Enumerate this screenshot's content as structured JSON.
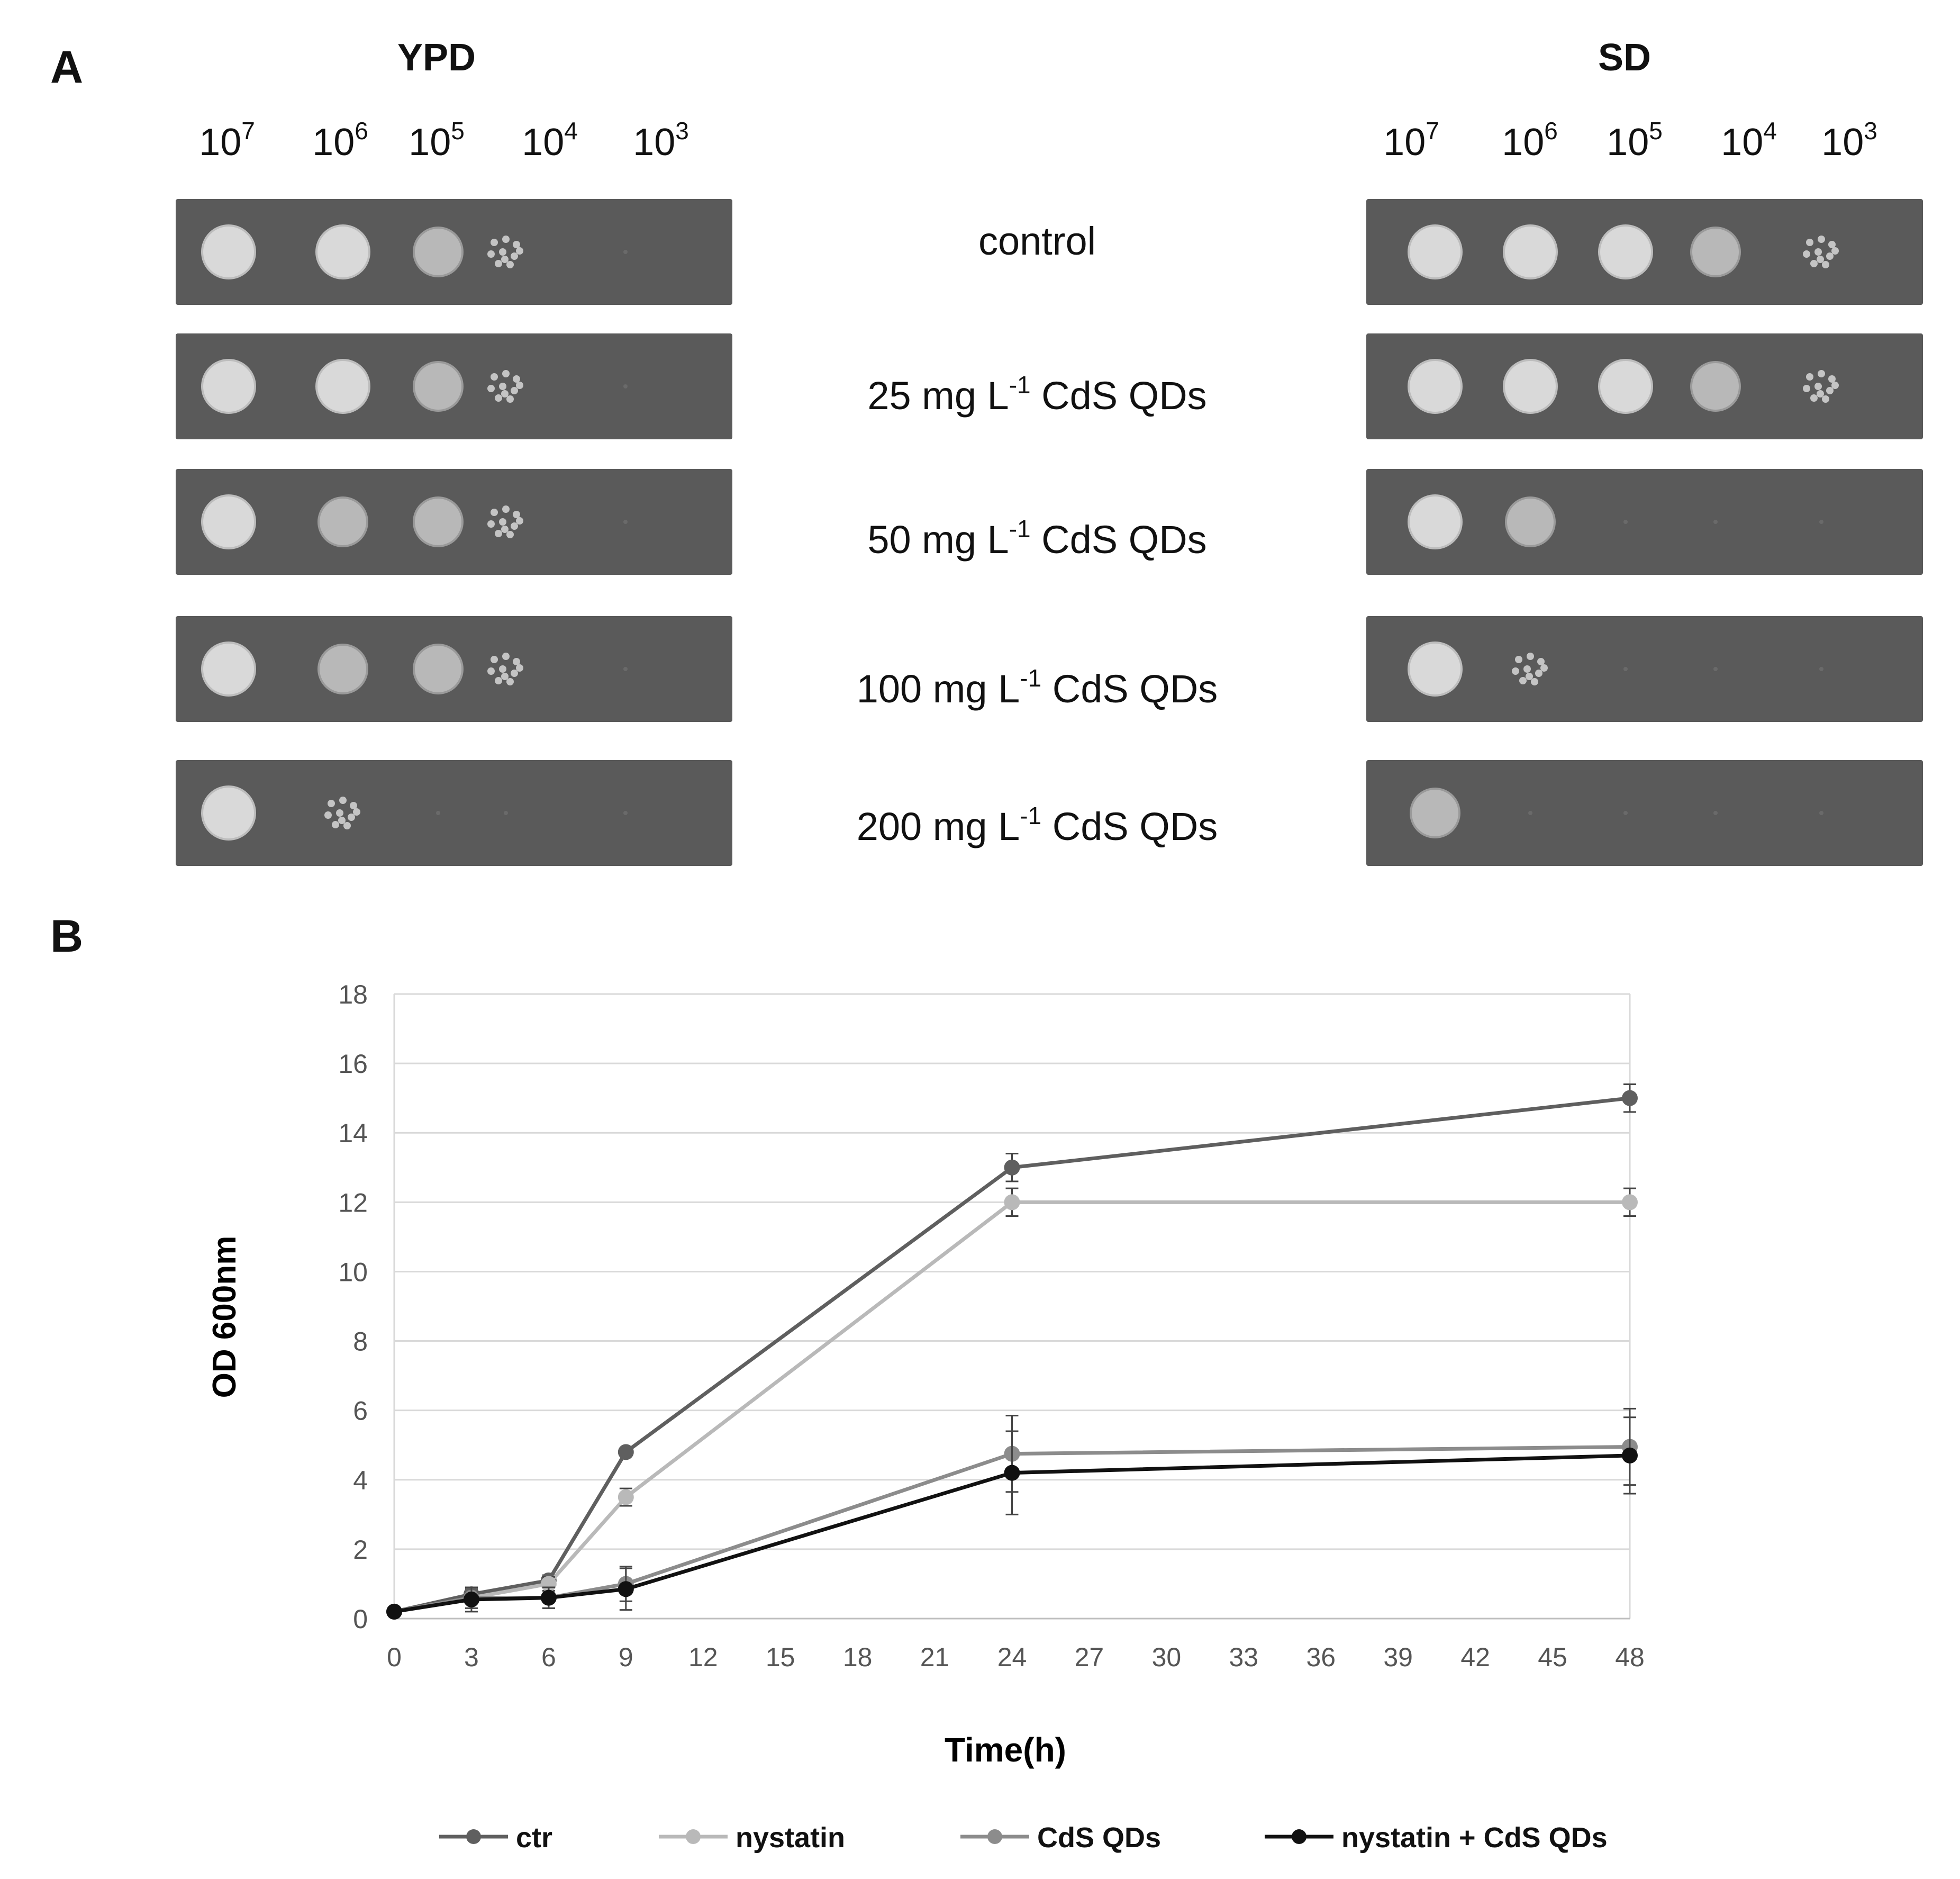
{
  "panel_a": {
    "letter": "A",
    "media": [
      {
        "title": "YPD"
      },
      {
        "title": "SD"
      }
    ],
    "dilutions": [
      {
        "base": "10",
        "exp": "7"
      },
      {
        "base": "10",
        "exp": "6"
      },
      {
        "base": "10",
        "exp": "5"
      },
      {
        "base": "10",
        "exp": "4"
      },
      {
        "base": "10",
        "exp": "3"
      }
    ],
    "conditions": [
      {
        "prefix": "control",
        "sup": "",
        "suffix": ""
      },
      {
        "prefix": "25 mg L",
        "sup": "-1",
        "suffix": " CdS QDs"
      },
      {
        "prefix": "50 mg L",
        "sup": "-1",
        "suffix": " CdS QDs"
      },
      {
        "prefix": "100 mg L",
        "sup": "-1",
        "suffix": " CdS QDs"
      },
      {
        "prefix": "200 mg L",
        "sup": "-1",
        "suffix": " CdS QDs"
      }
    ],
    "growth_scores": {
      "YPD": [
        [
          3,
          3,
          2,
          1,
          0
        ],
        [
          3,
          3,
          2,
          1,
          0
        ],
        [
          3,
          2,
          2,
          1,
          0
        ],
        [
          3,
          2,
          2,
          1,
          0
        ],
        [
          3,
          1,
          0,
          0,
          0
        ]
      ],
      "SD": [
        [
          3,
          3,
          3,
          2,
          1
        ],
        [
          3,
          3,
          3,
          2,
          1
        ],
        [
          3,
          2,
          0,
          0,
          0
        ],
        [
          3,
          1,
          0,
          0,
          0
        ],
        [
          2,
          0,
          0,
          0,
          0
        ]
      ]
    }
  },
  "panel_b": {
    "letter": "B"
  },
  "chart_data": {
    "type": "line",
    "title": "",
    "xlabel": "Time(h)",
    "ylabel": "OD 600nm",
    "xlim": [
      0,
      48
    ],
    "ylim": [
      0,
      18
    ],
    "xticks": [
      0,
      3,
      6,
      9,
      12,
      15,
      18,
      21,
      24,
      27,
      30,
      33,
      36,
      39,
      42,
      45,
      48
    ],
    "yticks": [
      0,
      2,
      4,
      6,
      8,
      10,
      12,
      14,
      16,
      18
    ],
    "grid": true,
    "legend_position": "bottom",
    "x": [
      0,
      3,
      6,
      9,
      24,
      48
    ],
    "series": [
      {
        "name": "ctr",
        "color": "#5f5f5f",
        "values": [
          0.2,
          0.7,
          1.1,
          4.8,
          13.0,
          15.0
        ],
        "errors": [
          0.05,
          0.15,
          0.15,
          0.1,
          0.4,
          0.4
        ]
      },
      {
        "name": "nystatin",
        "color": "#b9b9b9",
        "values": [
          0.2,
          0.6,
          1.0,
          3.5,
          12.0,
          12.0
        ],
        "errors": [
          0.05,
          0.15,
          0.2,
          0.25,
          0.4,
          0.4
        ]
      },
      {
        "name": "CdS QDs",
        "color": "#8c8c8c",
        "values": [
          0.2,
          0.6,
          0.6,
          1.0,
          4.75,
          4.95
        ],
        "errors": [
          0.05,
          0.3,
          0.3,
          0.5,
          1.1,
          1.1
        ]
      },
      {
        "name": "nystatin + CdS QDs",
        "color": "#111111",
        "values": [
          0.2,
          0.55,
          0.6,
          0.85,
          4.2,
          4.7
        ],
        "errors": [
          0.05,
          0.35,
          0.3,
          0.6,
          1.2,
          1.1
        ]
      }
    ]
  }
}
